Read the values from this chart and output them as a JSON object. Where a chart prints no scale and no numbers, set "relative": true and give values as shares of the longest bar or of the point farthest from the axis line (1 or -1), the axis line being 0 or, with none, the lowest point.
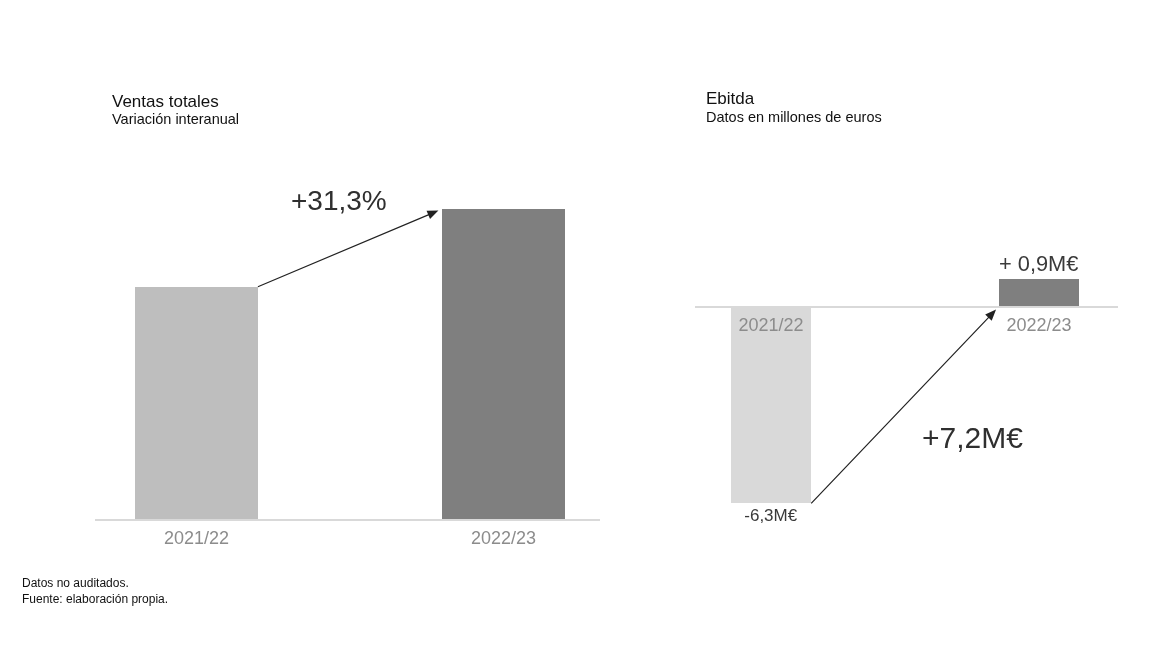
{
  "chart_data": [
    {
      "type": "bar",
      "title": "Ventas totales",
      "subtitle": "Variación interanual",
      "categories": [
        "2021/22",
        "2022/23"
      ],
      "values": [
        0.75,
        1
      ],
      "colors": [
        "#bebebe",
        "#7f7f7f"
      ],
      "relative": true,
      "annotations": [
        "+31,3%",
        "Datos no auditados.",
        "Fuente: elaboración propia."
      ]
    },
    {
      "type": "bar",
      "title": "Ebitda",
      "subtitle": "Datos en millones de euros",
      "categories": [
        "2021/22",
        "2022/23"
      ],
      "values": [
        -6.3,
        0.9
      ],
      "colors": [
        "#d9d9d9",
        "#7f7f7f"
      ],
      "value_labels": [
        "-6,3M€",
        "+ 0,9M€"
      ],
      "tick_labels": "x",
      "annotations": [
        "+7,2M€"
      ]
    }
  ]
}
